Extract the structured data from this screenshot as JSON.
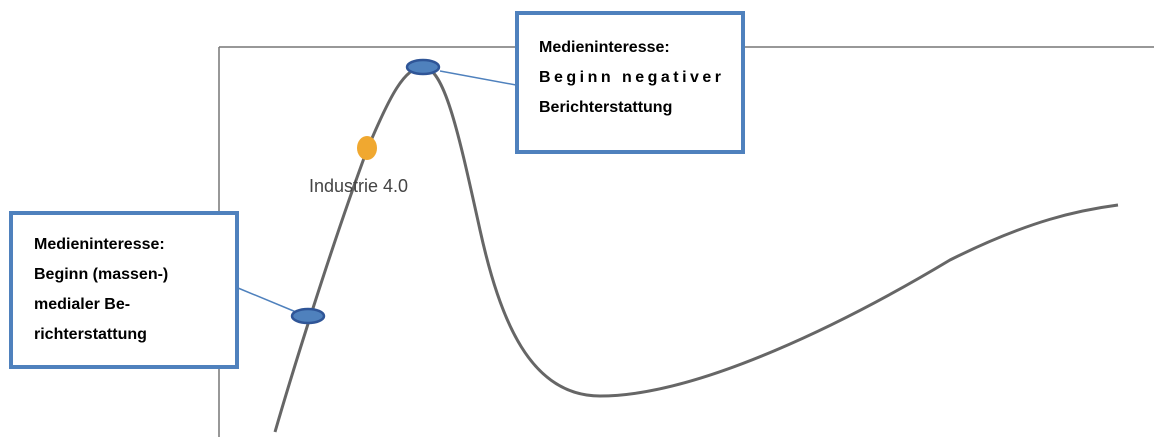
{
  "callouts": [
    {
      "lines": [
        "Medieninteresse:",
        "Beginn negativer",
        "Berichterstattung"
      ]
    },
    {
      "lines": [
        "Medieninteresse:",
        "Beginn (massen-)",
        "medialer Be-",
        "richterstattung"
      ]
    }
  ],
  "label": "Industrie 4.0"
}
